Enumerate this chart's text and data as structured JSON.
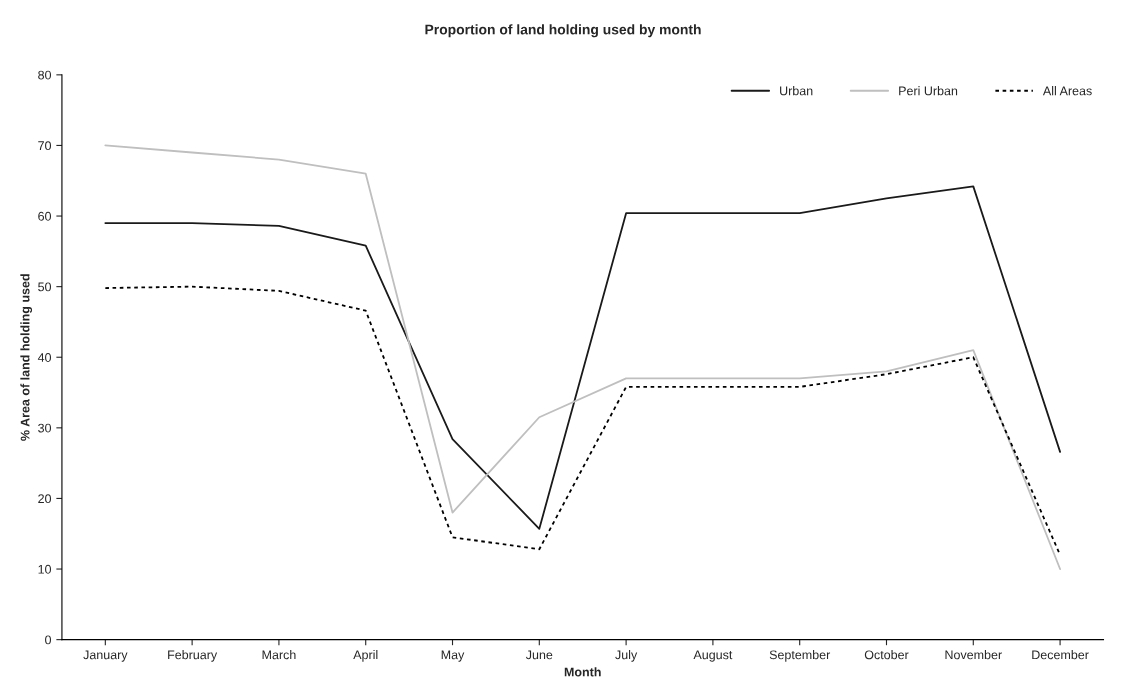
{
  "chart_data": {
    "type": "line",
    "title": "Proportion of land holding used by month",
    "xlabel": "Month",
    "ylabel": "% Area of land holding used",
    "categories": [
      "January",
      "February",
      "March",
      "April",
      "May",
      "June",
      "July",
      "August",
      "September",
      "October",
      "November",
      "December"
    ],
    "series": [
      {
        "name": "Urban",
        "color": "#1a1a1a",
        "line_style": "solid",
        "values": [
          59,
          59,
          58.6,
          55.8,
          28.4,
          15.7,
          60.4,
          60.4,
          60.4,
          62.5,
          64.2,
          26.6
        ]
      },
      {
        "name": "Peri Urban",
        "color": "#bfbfbf",
        "line_style": "solid",
        "values": [
          70,
          69,
          68,
          66,
          18,
          31.5,
          37,
          37,
          37,
          38,
          41,
          10
        ]
      },
      {
        "name": "All Areas",
        "color": "#000000",
        "line_style": "dotted",
        "values": [
          49.8,
          50,
          49.4,
          46.6,
          14.5,
          12.8,
          35.8,
          35.8,
          35.8,
          37.6,
          40,
          12
        ]
      }
    ],
    "ylim": [
      0,
      80
    ],
    "yticks": [
      0,
      10,
      20,
      30,
      40,
      50,
      60,
      70,
      80
    ],
    "grid": false,
    "legend": "top right"
  }
}
